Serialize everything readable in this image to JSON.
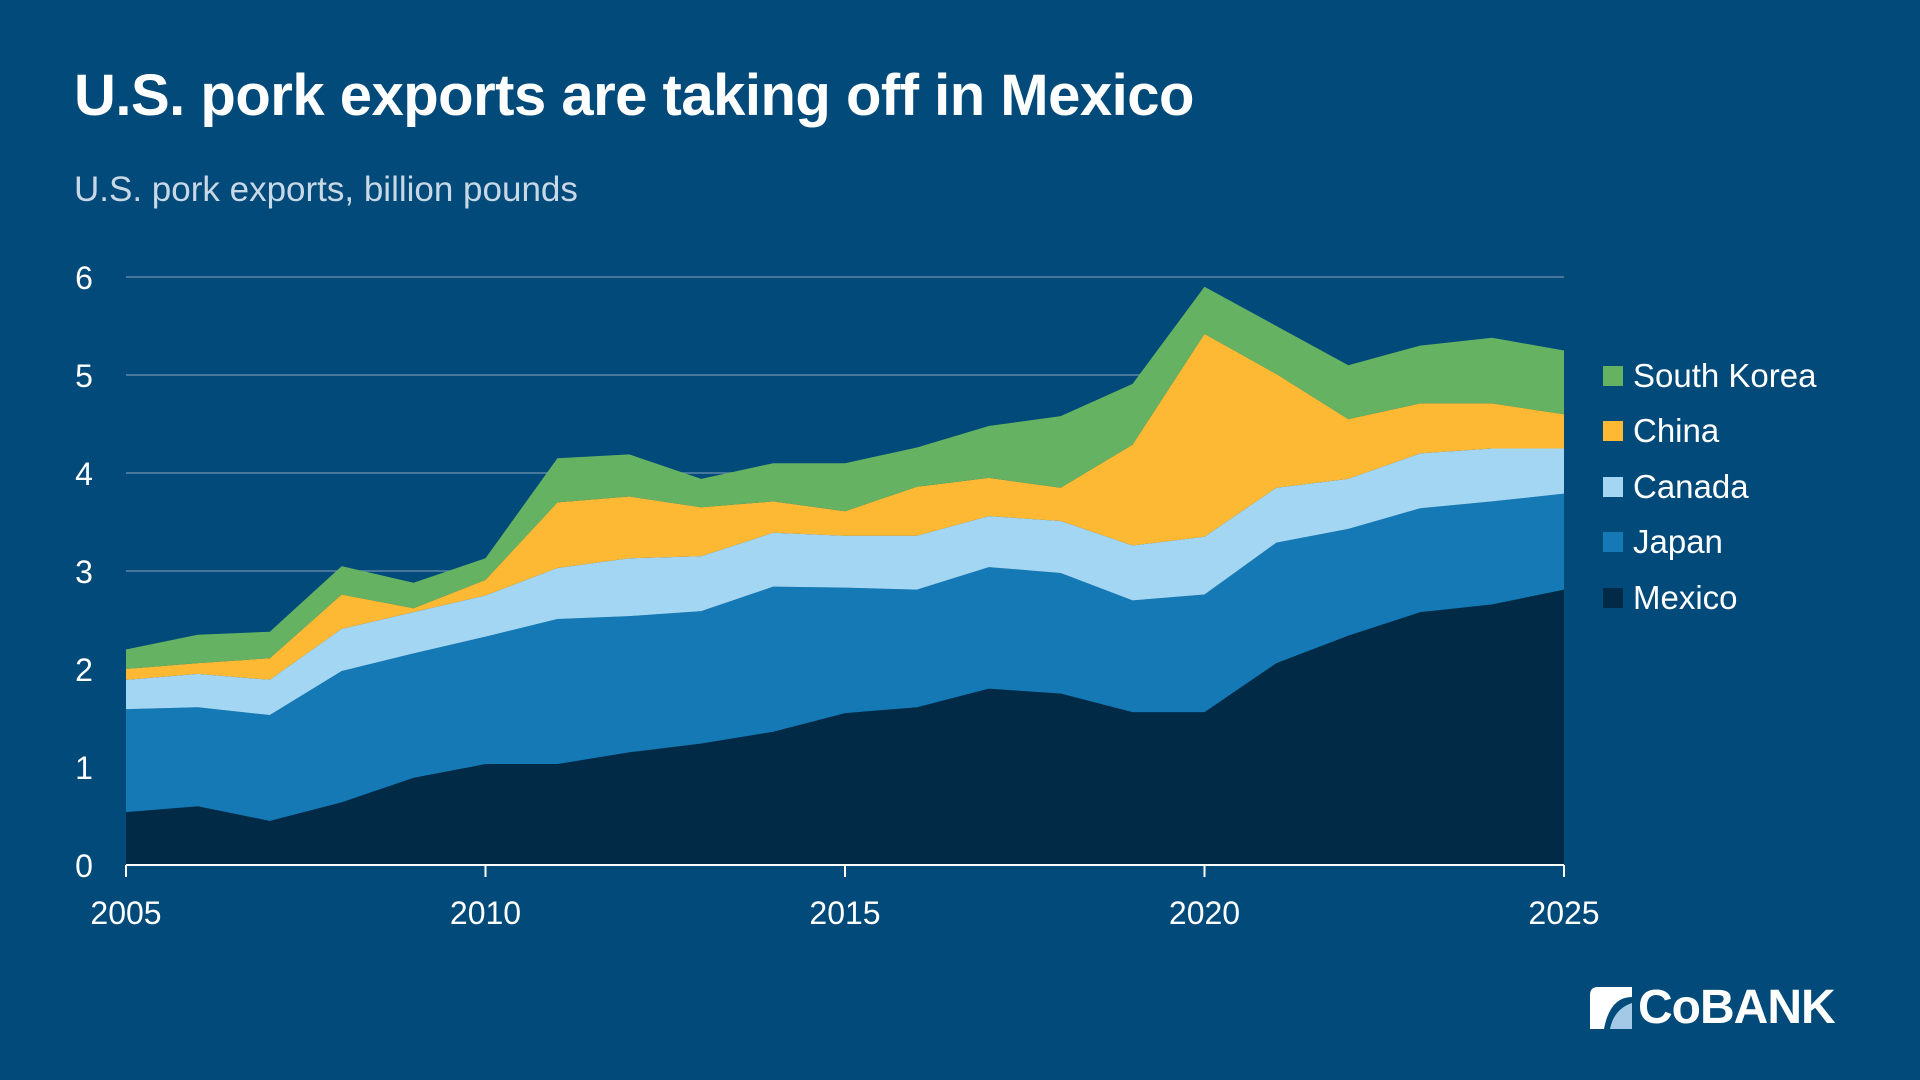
{
  "title": "U.S. pork exports are taking off in Mexico",
  "subtitle": "U.S. pork exports, billion pounds",
  "logo": "CoBANK",
  "chart_data": {
    "type": "area",
    "stacked": true,
    "title": "U.S. pork exports are taking off in Mexico",
    "subtitle": "U.S. pork exports, billion pounds",
    "xlabel": "",
    "ylabel": "",
    "x": [
      2005,
      2006,
      2007,
      2008,
      2009,
      2010,
      2011,
      2012,
      2013,
      2014,
      2015,
      2016,
      2017,
      2018,
      2019,
      2020,
      2021,
      2022,
      2023,
      2024,
      2025
    ],
    "xlim": [
      2005,
      2025
    ],
    "ylim": [
      0,
      6
    ],
    "x_ticks": [
      "2005",
      "2010",
      "2015",
      "2020",
      "2025"
    ],
    "y_ticks": [
      "0",
      "1",
      "2",
      "3",
      "4",
      "5",
      "6"
    ],
    "grid": "horizontal",
    "legend": "right",
    "series": [
      {
        "name": "Mexico",
        "color": "#002a45",
        "values": [
          0.54,
          0.6,
          0.45,
          0.64,
          0.89,
          1.03,
          1.03,
          1.15,
          1.24,
          1.36,
          1.55,
          1.61,
          1.8,
          1.75,
          1.56,
          1.56,
          2.06,
          2.34,
          2.58,
          2.66,
          2.81
        ]
      },
      {
        "name": "Japan",
        "color": "#1479b4",
        "values": [
          1.05,
          1.01,
          1.08,
          1.34,
          1.27,
          1.3,
          1.48,
          1.39,
          1.35,
          1.48,
          1.28,
          1.2,
          1.24,
          1.23,
          1.14,
          1.2,
          1.23,
          1.09,
          1.06,
          1.05,
          0.98
        ]
      },
      {
        "name": "Canada",
        "color": "#a3d6f3",
        "values": [
          0.3,
          0.34,
          0.36,
          0.43,
          0.42,
          0.42,
          0.52,
          0.59,
          0.56,
          0.55,
          0.53,
          0.55,
          0.52,
          0.53,
          0.56,
          0.59,
          0.56,
          0.51,
          0.56,
          0.54,
          0.46
        ]
      },
      {
        "name": "China",
        "color": "#fdb933",
        "values": [
          0.11,
          0.11,
          0.22,
          0.35,
          0.04,
          0.16,
          0.67,
          0.63,
          0.5,
          0.32,
          0.25,
          0.5,
          0.39,
          0.34,
          1.03,
          2.07,
          1.16,
          0.61,
          0.51,
          0.46,
          0.35
        ]
      },
      {
        "name": "South Korea",
        "color": "#65b263",
        "values": [
          0.2,
          0.29,
          0.27,
          0.29,
          0.26,
          0.22,
          0.45,
          0.43,
          0.29,
          0.39,
          0.49,
          0.4,
          0.53,
          0.73,
          0.62,
          0.48,
          0.49,
          0.55,
          0.59,
          0.67,
          0.65
        ]
      }
    ]
  }
}
